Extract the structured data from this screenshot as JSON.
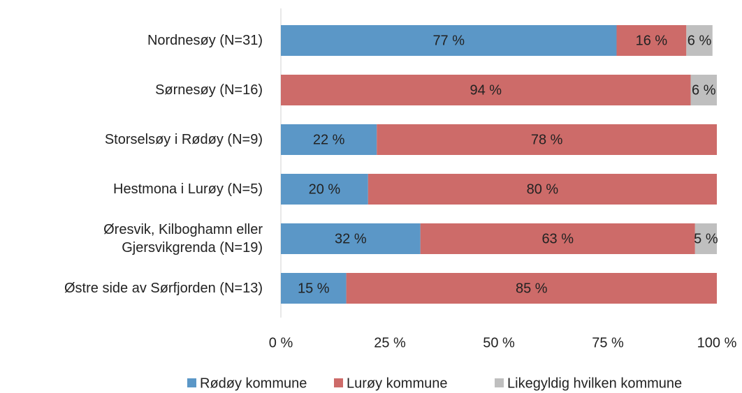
{
  "chart_data": {
    "type": "stacked_bar_horizontal",
    "categories": [
      "Nordnesøy (N=31)",
      "Sørnesøy (N=16)",
      "Storselsøy i Rødøy (N=9)",
      "Hestmona i Lurøy (N=5)",
      "Øresvik, Kilboghamn eller\nGjersvikgrenda (N=19)",
      "Østre side av Sørfjorden (N=13)"
    ],
    "series": [
      {
        "name": "Rødøy kommune",
        "color": "#5b97c7",
        "values": [
          77,
          null,
          22,
          20,
          32,
          15
        ],
        "value_labels": [
          "77 %",
          null,
          "22 %",
          "20 %",
          "32 %",
          "15 %"
        ]
      },
      {
        "name": "Lurøy kommune",
        "color": "#cd6b69",
        "values": [
          16,
          94,
          78,
          80,
          63,
          85
        ],
        "value_labels": [
          "16 %",
          "94 %",
          "78 %",
          "80 %",
          "63 %",
          "85 %"
        ]
      },
      {
        "name": "Likegyldig hvilken kommune",
        "color": "#bfbfbf",
        "values": [
          6,
          6,
          null,
          null,
          5,
          null
        ],
        "value_labels": [
          "6 %",
          "6 %",
          null,
          null,
          "5 %",
          null
        ]
      }
    ],
    "xlim": [
      0,
      100
    ],
    "xticks": [
      {
        "value": 0,
        "label": "0 %"
      },
      {
        "value": 25,
        "label": "25 %"
      },
      {
        "value": 50,
        "label": "50 %"
      },
      {
        "value": 75,
        "label": "75 %"
      },
      {
        "value": 100,
        "label": "100 %"
      }
    ],
    "grid": false,
    "legend": "bottom"
  }
}
